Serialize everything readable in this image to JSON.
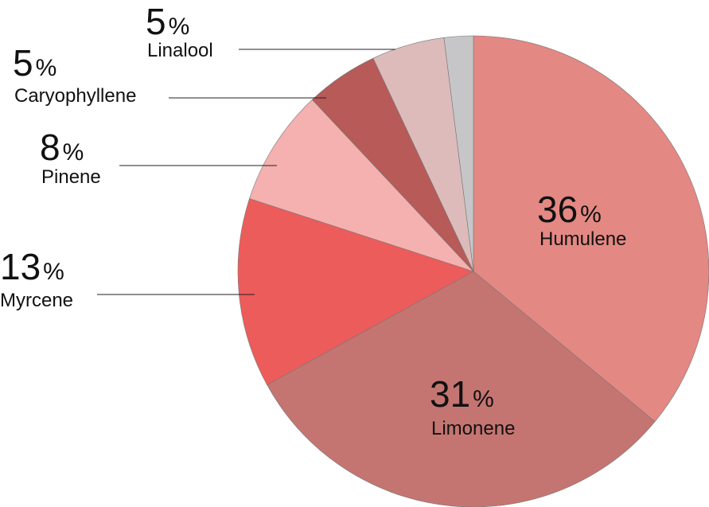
{
  "chart_data": {
    "type": "pie",
    "start_angle_deg": 0,
    "direction": "clockwise",
    "slices": [
      {
        "name": "Humulene",
        "value": 36,
        "pct_label": "36",
        "pct_sign": "%",
        "color": "#E38883"
      },
      {
        "name": "Limonene",
        "value": 31,
        "pct_label": "31",
        "pct_sign": "%",
        "color": "#C57571"
      },
      {
        "name": "Myrcene",
        "value": 13,
        "pct_label": "13",
        "pct_sign": "%",
        "color": "#EC5C5B"
      },
      {
        "name": "Pinene",
        "value": 8,
        "pct_label": "8",
        "pct_sign": "%",
        "color": "#F4B1AF"
      },
      {
        "name": "Caryophyllene",
        "value": 5,
        "pct_label": "5",
        "pct_sign": "%",
        "color": "#B85A58"
      },
      {
        "name": "Linalool",
        "value": 5,
        "pct_label": "5",
        "pct_sign": "%",
        "color": "#DCBBBA"
      },
      {
        "name": "",
        "value": 2,
        "pct_label": "",
        "pct_sign": "",
        "color": "#C6C6C8"
      }
    ]
  }
}
